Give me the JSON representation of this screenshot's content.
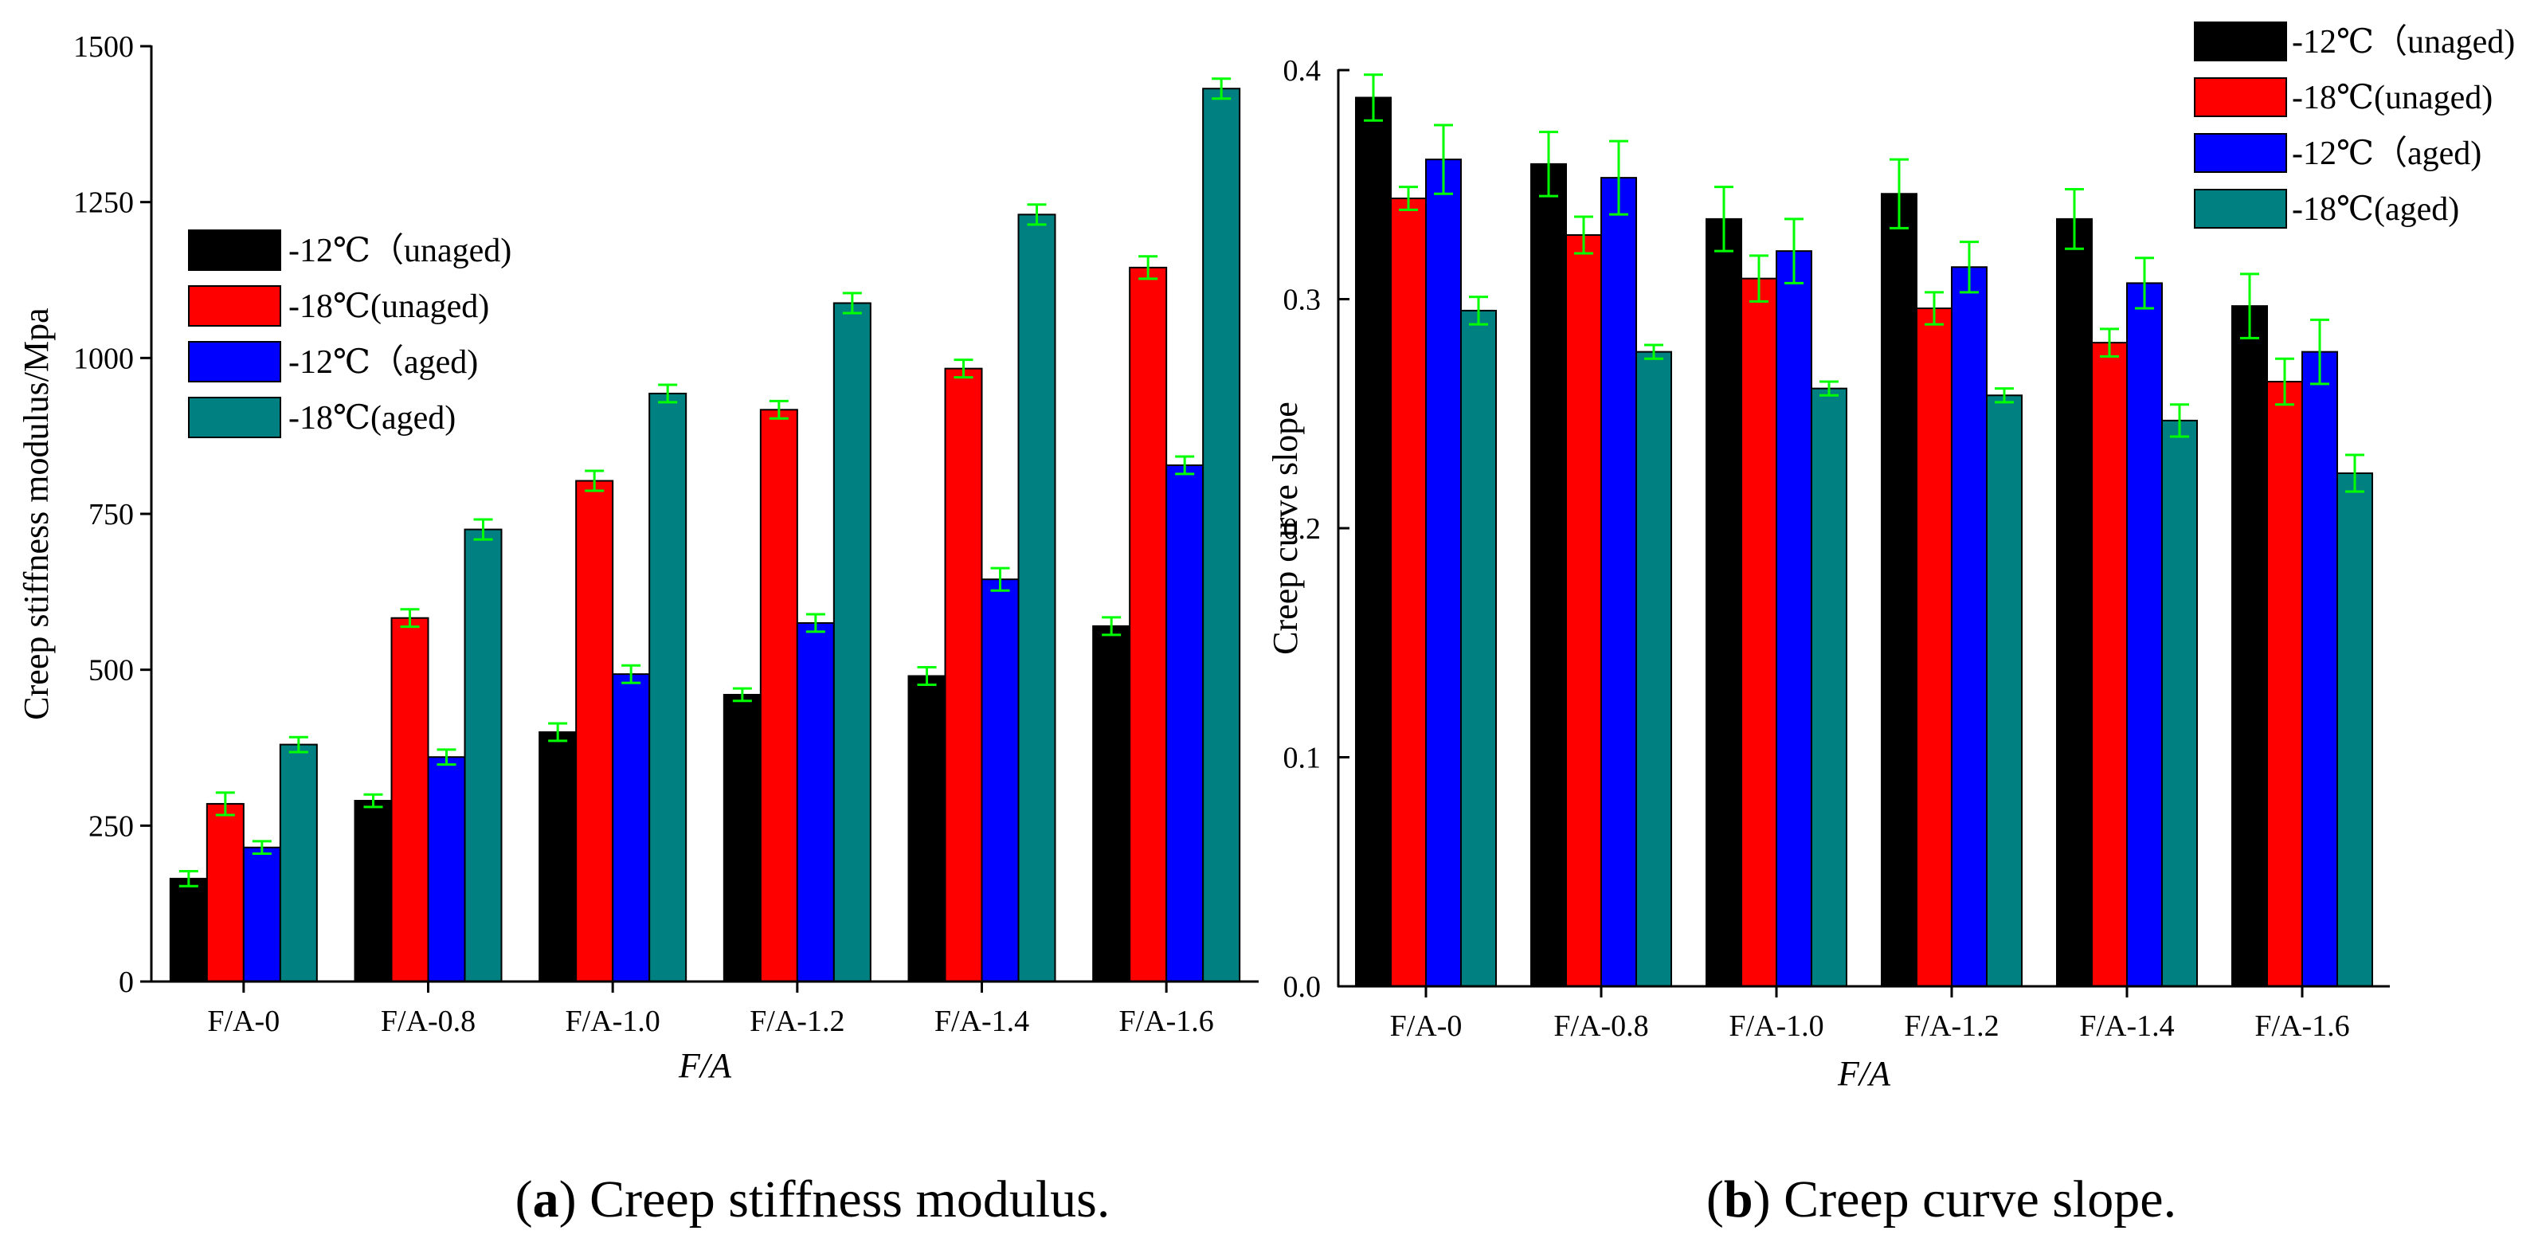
{
  "figure": {
    "caption_a_letter": "a",
    "caption_a_text": " Creep stiffness modulus.",
    "caption_b_letter": "b",
    "caption_b_text": " Creep curve slope."
  },
  "colors": {
    "series": [
      "#000000",
      "#ff0000",
      "#0000ff",
      "#008080"
    ],
    "error_bar": "#00ff00",
    "axis": "#000000"
  },
  "chart_data": [
    {
      "type": "bar",
      "panel": "a",
      "title": "",
      "xlabel": "F/A",
      "ylabel": "Creep stiffness modulus/Mpa",
      "categories": [
        "F/A-0",
        "F/A-0.8",
        "F/A-1.0",
        "F/A-1.2",
        "F/A-1.4",
        "F/A-1.6"
      ],
      "ylim": [
        0,
        1500
      ],
      "yticks": [
        0,
        250,
        500,
        750,
        1000,
        1250,
        1500
      ],
      "ytick_labels": [
        "0",
        "250",
        "500",
        "750",
        "1000",
        "1250",
        "1500"
      ],
      "grid": false,
      "legend_position": "upper-left",
      "series": [
        {
          "name": "-12℃（unaged)",
          "values": [
            165,
            290,
            400,
            460,
            490,
            570
          ],
          "errors": [
            12,
            10,
            14,
            10,
            14,
            14
          ]
        },
        {
          "name": "-18℃(unaged)",
          "values": [
            285,
            583,
            803,
            917,
            983,
            1145
          ],
          "errors": [
            18,
            14,
            16,
            14,
            14,
            18
          ]
        },
        {
          "name": "-12℃（aged)",
          "values": [
            215,
            360,
            493,
            575,
            645,
            828
          ],
          "errors": [
            10,
            12,
            14,
            14,
            18,
            14
          ]
        },
        {
          "name": "-18℃(aged)",
          "values": [
            380,
            725,
            943,
            1088,
            1230,
            1432
          ],
          "errors": [
            12,
            16,
            14,
            16,
            16,
            16
          ]
        }
      ]
    },
    {
      "type": "bar",
      "panel": "b",
      "title": "",
      "xlabel": "F/A",
      "ylabel": "Creep curve slope",
      "categories": [
        "F/A-0",
        "F/A-0.8",
        "F/A-1.0",
        "F/A-1.2",
        "F/A-1.4",
        "F/A-1.6"
      ],
      "ylim": [
        0,
        0.4
      ],
      "yticks": [
        0,
        0.1,
        0.2,
        0.3,
        0.4
      ],
      "ytick_labels": [
        "0.0",
        "0.1",
        "0.2",
        "0.3",
        "0.4"
      ],
      "grid": false,
      "legend_position": "top-right",
      "series": [
        {
          "name": "-12℃（unaged)",
          "values": [
            0.388,
            0.359,
            0.335,
            0.346,
            0.335,
            0.297
          ],
          "errors": [
            0.01,
            0.014,
            0.014,
            0.015,
            0.013,
            0.014
          ]
        },
        {
          "name": "-18℃(unaged)",
          "values": [
            0.344,
            0.328,
            0.309,
            0.296,
            0.281,
            0.264
          ],
          "errors": [
            0.005,
            0.008,
            0.01,
            0.007,
            0.006,
            0.01
          ]
        },
        {
          "name": "-12℃（aged)",
          "values": [
            0.361,
            0.353,
            0.321,
            0.314,
            0.307,
            0.277
          ],
          "errors": [
            0.015,
            0.016,
            0.014,
            0.011,
            0.011,
            0.014
          ]
        },
        {
          "name": "-18℃(aged)",
          "values": [
            0.295,
            0.277,
            0.261,
            0.258,
            0.247,
            0.224
          ],
          "errors": [
            0.006,
            0.003,
            0.003,
            0.003,
            0.007,
            0.008
          ]
        }
      ]
    }
  ]
}
